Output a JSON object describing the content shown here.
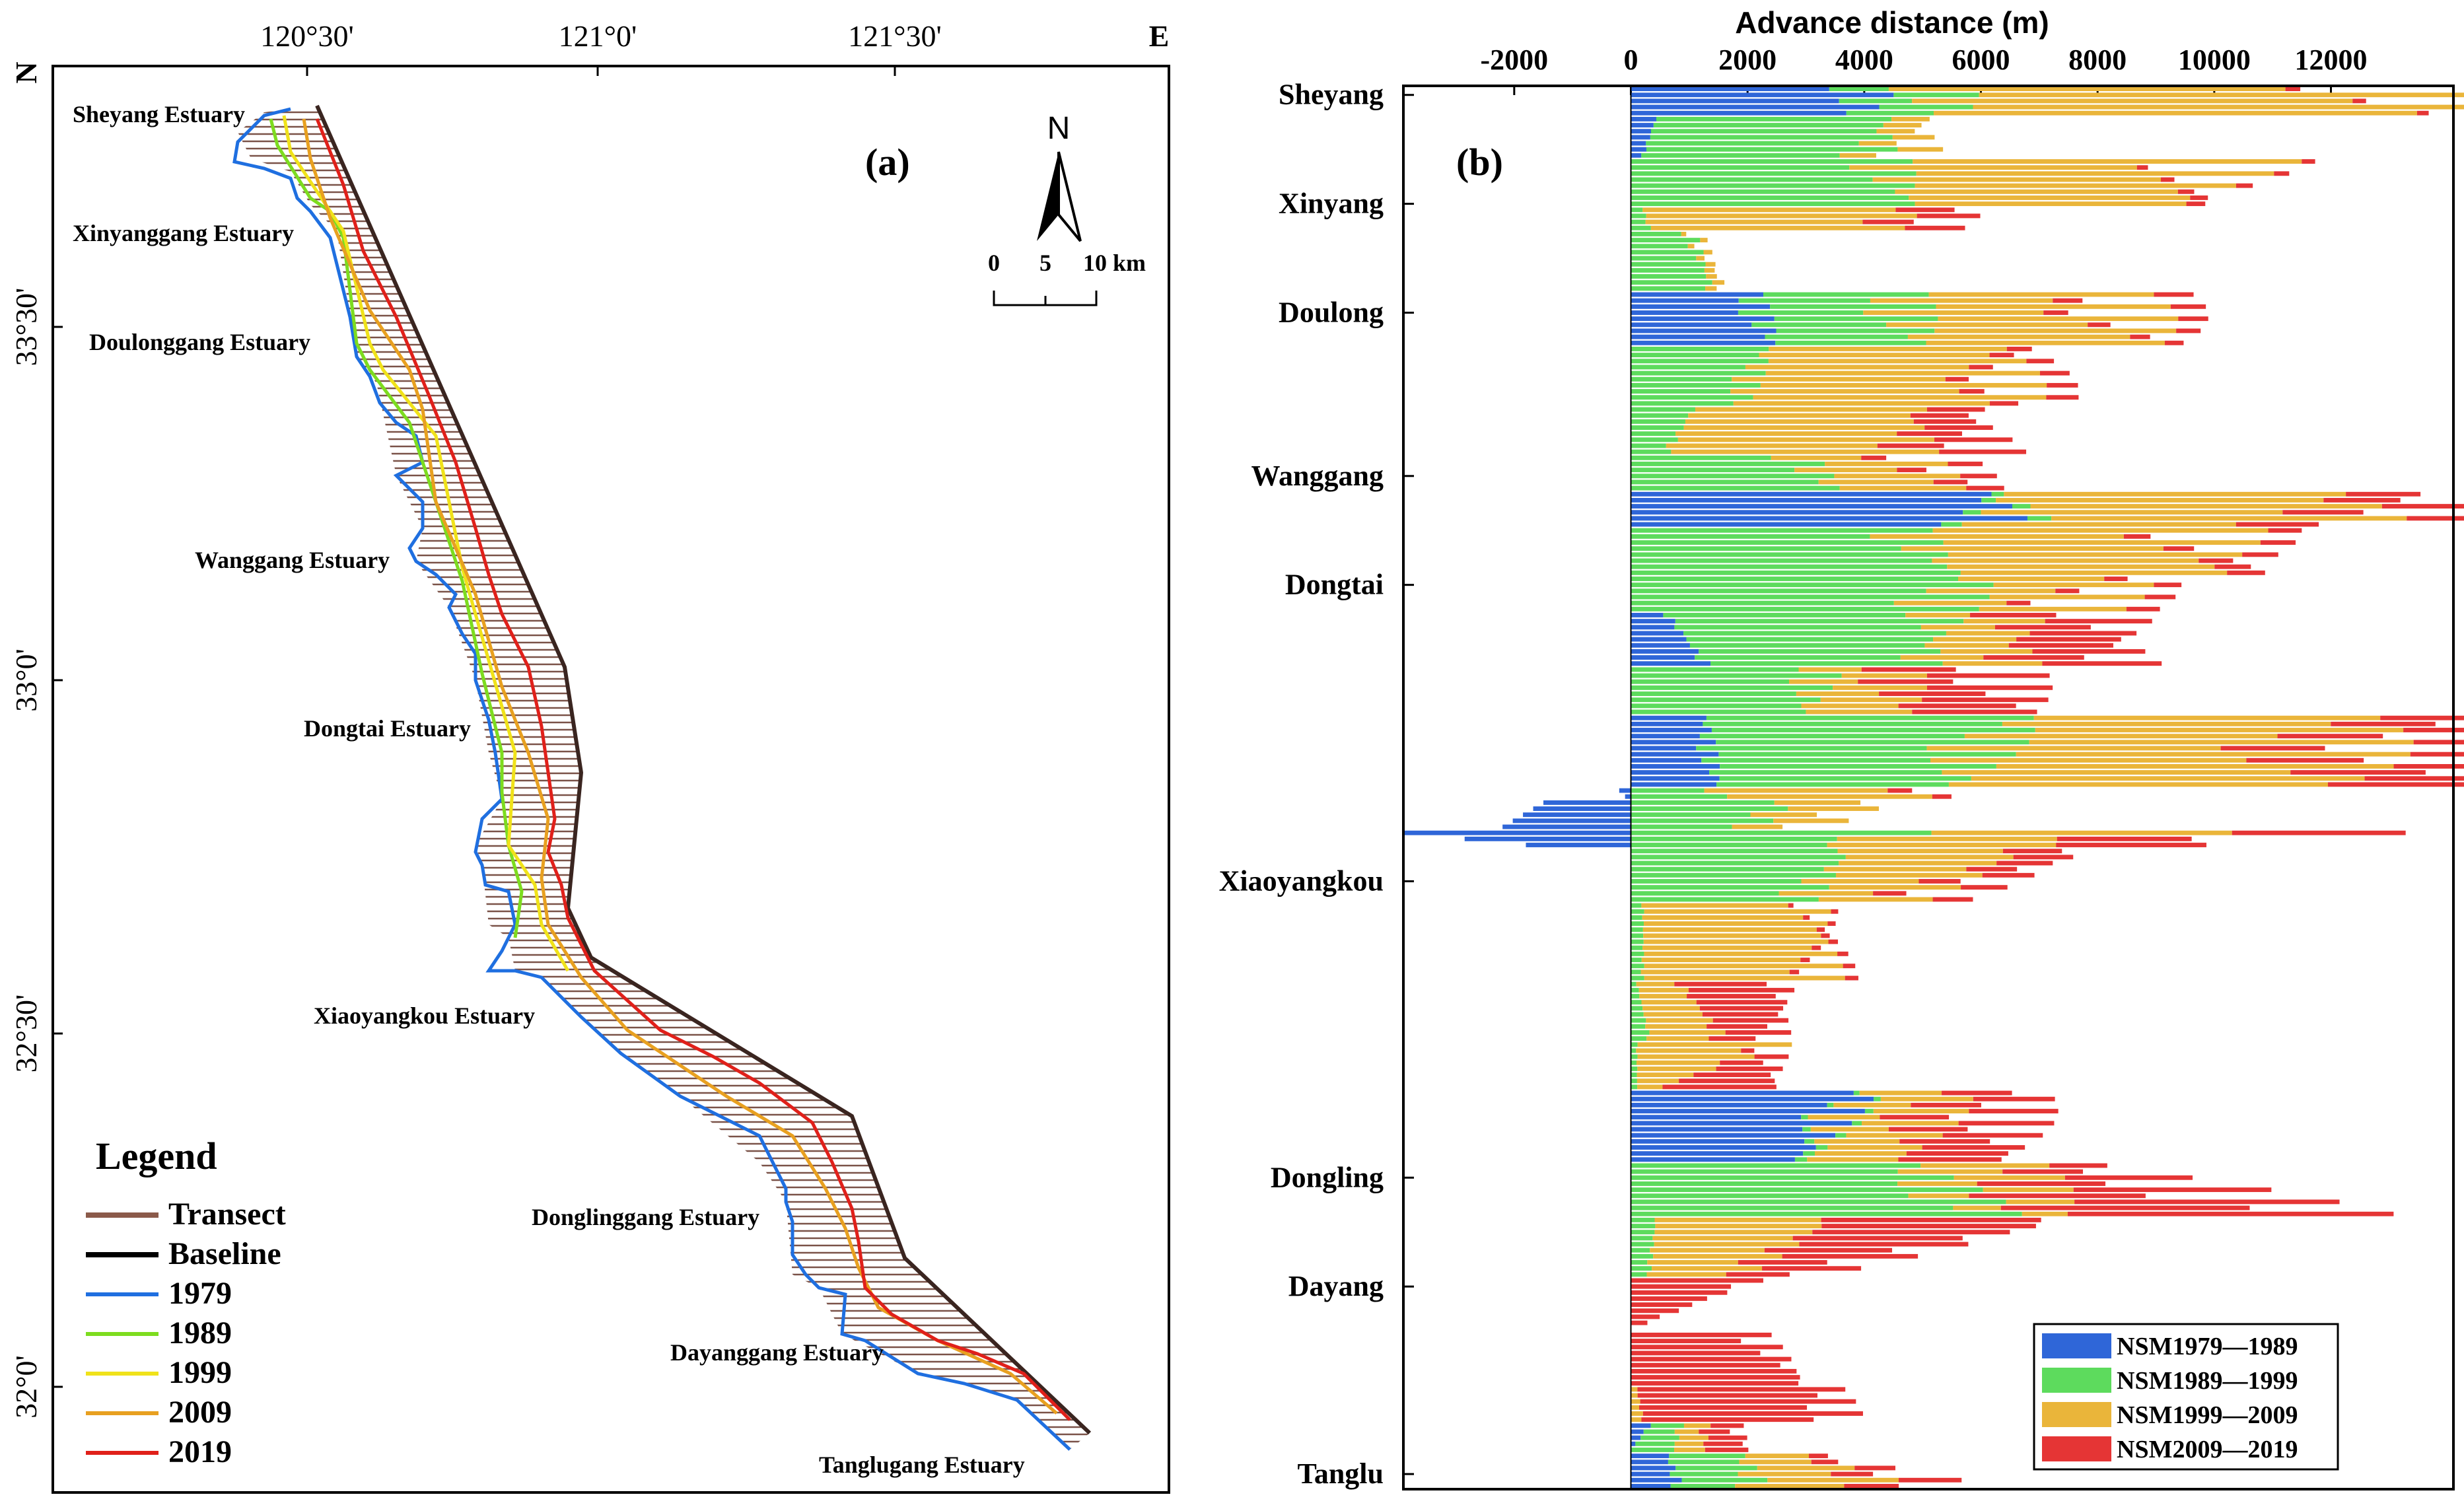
{
  "panel_a": {
    "label": "(a)",
    "top_ticks": [
      "120°30'",
      "121°0'",
      "121°30'",
      "E"
    ],
    "left_ticks": [
      "N",
      "33°30'",
      "33°0'",
      "32°30'",
      "32°0'"
    ],
    "north_label": "N",
    "scale_labels": [
      "0",
      "5",
      "10 km"
    ],
    "estuaries": [
      "Sheyang Estuary",
      "Xinyanggang Estuary",
      "Doulonggang Estuary",
      "Wanggang Estuary",
      "Dongtai Estuary",
      "Xiaoyangkou Estuary",
      "Donglinggang Estuary",
      "Dayanggang Estuary",
      "Tanglugang Estuary"
    ],
    "legend": {
      "title": "Legend",
      "items": [
        {
          "label": "Transect",
          "color": "#8b5a4a"
        },
        {
          "label": "Baseline",
          "color": "#000000"
        },
        {
          "label": "1979",
          "color": "#1f6fe0"
        },
        {
          "label": "1989",
          "color": "#7ddc1f"
        },
        {
          "label": "1999",
          "color": "#f0e21a"
        },
        {
          "label": "2009",
          "color": "#e8a020"
        },
        {
          "label": "2019",
          "color": "#e0201a"
        }
      ]
    }
  },
  "panel_b": {
    "label": "(b)"
  },
  "chart_data": {
    "type": "bar",
    "orientation": "horizontal-stacked",
    "xlabel": "Advance distance (m)",
    "xticks": [
      -2000,
      0,
      2000,
      4000,
      6000,
      8000,
      10000,
      12000
    ],
    "xlim": [
      -3900,
      14100
    ],
    "estuary_labels": [
      "Sheyang",
      "Xinyang",
      "Doulong",
      "Wanggang",
      "Dongtai",
      "Xiaoyangkou",
      "Dongling",
      "Dayang",
      "Tanglu"
    ],
    "estuary_transect_index": [
      1,
      19,
      37,
      64,
      82,
      131,
      180,
      198,
      229
    ],
    "n_transects": 232,
    "series": [
      {
        "name": "NSM1979—1989",
        "color": "#2f66d8"
      },
      {
        "name": "NSM1989—1999",
        "color": "#5ddb5d"
      },
      {
        "name": "NSM1999—2009",
        "color": "#eab53a"
      },
      {
        "name": "NSM2009—2019",
        "color": "#e53535"
      }
    ],
    "segments": [
      {
        "from": 0,
        "to": 4,
        "nsm": [
          [
            4000,
            1200,
            8000,
            300
          ],
          [
            3700,
            1500,
            8300,
            200
          ]
        ]
      },
      {
        "from": 5,
        "to": 11,
        "nsm": [
          [
            400,
            3700,
            600,
            0
          ],
          [
            200,
            3800,
            700,
            0
          ]
        ]
      },
      {
        "from": 12,
        "to": 19,
        "nsm": [
          [
            0,
            4200,
            5800,
            200
          ],
          [
            0,
            4500,
            4300,
            300
          ]
        ]
      },
      {
        "from": 20,
        "to": 23,
        "nsm": [
          [
            0,
            200,
            4300,
            1000
          ],
          [
            0,
            300,
            3800,
            900
          ]
        ]
      },
      {
        "from": 24,
        "to": 33,
        "nsm": [
          [
            0,
            1000,
            100,
            0
          ],
          [
            0,
            1300,
            200,
            0
          ]
        ]
      },
      {
        "from": 34,
        "to": 42,
        "nsm": [
          [
            2000,
            2500,
            3400,
            600
          ],
          [
            2300,
            2400,
            3800,
            300
          ]
        ]
      },
      {
        "from": 43,
        "to": 52,
        "nsm": [
          [
            0,
            2200,
            3800,
            400
          ],
          [
            0,
            1800,
            4500,
            500
          ]
        ]
      },
      {
        "from": 53,
        "to": 60,
        "nsm": [
          [
            0,
            1000,
            3600,
            900
          ],
          [
            0,
            600,
            4000,
            1300
          ]
        ]
      },
      {
        "from": 61,
        "to": 66,
        "nsm": [
          [
            0,
            2800,
            1800,
            500
          ],
          [
            0,
            3300,
            2000,
            600
          ]
        ]
      },
      {
        "from": 67,
        "to": 72,
        "nsm": [
          [
            5800,
            200,
            5500,
            1200
          ],
          [
            6000,
            400,
            5300,
            1600
          ]
        ]
      },
      {
        "from": 73,
        "to": 80,
        "nsm": [
          [
            0,
            4500,
            5000,
            500
          ],
          [
            0,
            5200,
            4200,
            600
          ]
        ]
      },
      {
        "from": 81,
        "to": 86,
        "nsm": [
          [
            0,
            5600,
            2500,
            400
          ],
          [
            0,
            5200,
            2200,
            500
          ]
        ]
      },
      {
        "from": 87,
        "to": 95,
        "nsm": [
          [
            600,
            4500,
            1200,
            1600
          ],
          [
            1200,
            3500,
            1500,
            1800
          ]
        ]
      },
      {
        "from": 96,
        "to": 103,
        "nsm": [
          [
            0,
            3200,
            1200,
            1800
          ],
          [
            0,
            2800,
            1700,
            2000
          ]
        ]
      },
      {
        "from": 104,
        "to": 115,
        "nsm": [
          [
            1200,
            5200,
            5500,
            1700
          ],
          [
            1400,
            3800,
            6200,
            2500
          ]
        ]
      },
      {
        "from": 116,
        "to": 117,
        "nsm": [
          [
            -200,
            1200,
            3000,
            400
          ],
          [
            -100,
            1500,
            3200,
            300
          ]
        ]
      },
      {
        "from": 118,
        "to": 122,
        "nsm": [
          [
            -1500,
            2500,
            1500,
            0
          ],
          [
            -2200,
            2000,
            1000,
            0
          ]
        ]
      },
      {
        "from": 123,
        "to": 125,
        "nsm": [
          [
            -3900,
            4500,
            4500,
            2600
          ],
          [
            -1800,
            3000,
            3500,
            2300
          ]
        ]
      },
      {
        "from": 126,
        "to": 134,
        "nsm": [
          [
            0,
            3500,
            2800,
            1000
          ],
          [
            0,
            2800,
            1700,
            600
          ]
        ]
      },
      {
        "from": 135,
        "to": 147,
        "nsm": [
          [
            0,
            200,
            2800,
            100
          ],
          [
            0,
            200,
            3000,
            200
          ]
        ]
      },
      {
        "from": 148,
        "to": 157,
        "nsm": [
          [
            0,
            100,
            700,
            1700
          ],
          [
            0,
            300,
            1200,
            900
          ]
        ]
      },
      {
        "from": 158,
        "to": 165,
        "nsm": [
          [
            0,
            100,
            2300,
            0
          ],
          [
            0,
            100,
            400,
            1800
          ]
        ]
      },
      {
        "from": 166,
        "to": 177,
        "nsm": [
          [
            3800,
            100,
            1400,
            1200
          ],
          [
            2700,
            200,
            1500,
            1700
          ]
        ]
      },
      {
        "from": 178,
        "to": 186,
        "nsm": [
          [
            0,
            4500,
            2000,
            900
          ],
          [
            0,
            6000,
            700,
            5000
          ]
        ]
      },
      {
        "from": 187,
        "to": 196,
        "nsm": [
          [
            0,
            400,
            2800,
            3700
          ],
          [
            0,
            300,
            1500,
            1200
          ]
        ]
      },
      {
        "from": 197,
        "to": 205,
        "nsm": [
          [
            0,
            0,
            0,
            2000
          ],
          [
            0,
            0,
            0,
            0
          ]
        ]
      },
      {
        "from": 206,
        "to": 214,
        "nsm": [
          [
            0,
            0,
            0,
            2100
          ],
          [
            0,
            0,
            0,
            2800
          ]
        ]
      },
      {
        "from": 215,
        "to": 220,
        "nsm": [
          [
            0,
            0,
            100,
            3200
          ],
          [
            0,
            0,
            200,
            3300
          ]
        ]
      },
      {
        "from": 221,
        "to": 225,
        "nsm": [
          [
            300,
            500,
            400,
            500
          ],
          [
            0,
            700,
            500,
            700
          ]
        ]
      },
      {
        "from": 226,
        "to": 231,
        "nsm": [
          [
            600,
            1200,
            1000,
            300
          ],
          [
            800,
            1300,
            2200,
            1100
          ]
        ]
      }
    ]
  }
}
